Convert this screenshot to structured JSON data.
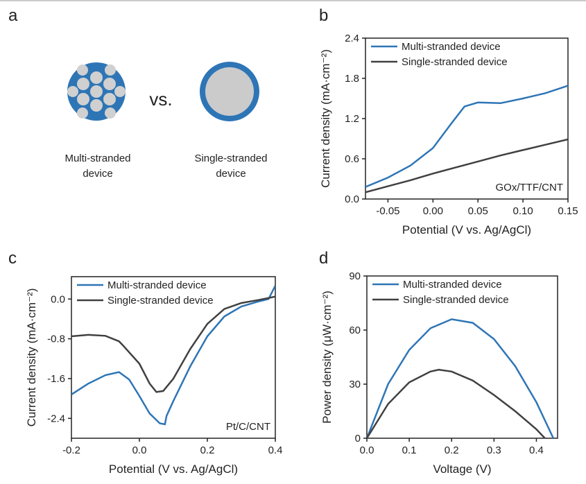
{
  "panel_a": {
    "label": "a",
    "multi_label": [
      "Multi-stranded",
      "device"
    ],
    "vs": "vs.",
    "single_label": [
      "Single-stranded",
      "device"
    ]
  },
  "chart_data": [
    {
      "type": "line",
      "label": "b",
      "xlabel": "Potential (V vs. Ag/AgCl)",
      "ylabel": "Current density (mA·cm⁻²)",
      "annotation": "GOx/TTF/CNT",
      "xlim": [
        -0.075,
        0.15
      ],
      "xticks": [
        -0.05,
        {
          "value": 0,
          "label": "0.00"
        },
        0.05,
        {
          "value": 0.1,
          "label": "0.10"
        },
        0.15
      ],
      "ylim": [
        0,
        2.4
      ],
      "yticks": [
        {
          "value": 0,
          "label": "0.0"
        },
        0.6,
        1.2,
        1.8,
        2.4
      ],
      "legend": "upper left",
      "series": [
        {
          "name": "Multi-stranded device",
          "color": "#2e75b6",
          "x": [
            -0.075,
            -0.05,
            -0.025,
            0,
            0.02,
            0.035,
            0.05,
            0.075,
            0.1,
            0.125,
            0.15
          ],
          "values": [
            0.18,
            0.32,
            0.5,
            0.76,
            1.12,
            1.38,
            1.44,
            1.43,
            1.5,
            1.58,
            1.69
          ]
        },
        {
          "name": "Single-stranded device",
          "color": "#404040",
          "x": [
            -0.075,
            -0.05,
            -0.025,
            0,
            0.025,
            0.05,
            0.075,
            0.1,
            0.125,
            0.15
          ],
          "values": [
            0.1,
            0.19,
            0.28,
            0.38,
            0.47,
            0.56,
            0.65,
            0.73,
            0.81,
            0.89
          ]
        }
      ]
    },
    {
      "type": "line",
      "label": "c",
      "xlabel": "Potential (V vs. Ag/AgCl)",
      "ylabel": "Current density (mA·cm⁻²)",
      "annotation": "Pt/C/CNT",
      "xlim": [
        -0.2,
        0.4
      ],
      "xticks": [
        -0.2,
        {
          "value": 0,
          "label": "0.0"
        },
        0.2,
        0.4
      ],
      "ylim": [
        -2.8,
        0.45
      ],
      "yticks": [
        -2.4,
        -1.6,
        -0.8,
        {
          "value": 0,
          "label": "0.0"
        }
      ],
      "legend": "upper left",
      "series": [
        {
          "name": "Multi-stranded device",
          "color": "#2e75b6",
          "x": [
            -0.2,
            -0.15,
            -0.1,
            -0.06,
            -0.03,
            0,
            0.03,
            0.06,
            0.075,
            0.08,
            0.1,
            0.15,
            0.2,
            0.25,
            0.3,
            0.35,
            0.38,
            0.4
          ],
          "values": [
            -1.92,
            -1.7,
            -1.53,
            -1.47,
            -1.62,
            -1.95,
            -2.3,
            -2.5,
            -2.52,
            -2.35,
            -2.05,
            -1.35,
            -0.75,
            -0.35,
            -0.15,
            -0.05,
            0,
            0.27
          ]
        },
        {
          "name": "Single-stranded device",
          "color": "#404040",
          "x": [
            -0.2,
            -0.15,
            -0.1,
            -0.06,
            -0.05,
            0,
            0.03,
            0.05,
            0.07,
            0.1,
            0.15,
            0.2,
            0.25,
            0.3,
            0.35,
            0.4
          ],
          "values": [
            -0.75,
            -0.72,
            -0.74,
            -0.85,
            -0.92,
            -1.3,
            -1.7,
            -1.87,
            -1.85,
            -1.6,
            -1,
            -0.5,
            -0.2,
            -0.08,
            -0.02,
            0.05
          ]
        }
      ]
    },
    {
      "type": "line",
      "label": "d",
      "xlabel": "Voltage (V)",
      "ylabel": "Power density (μW·cm⁻²)",
      "xlim": [
        0,
        0.45
      ],
      "xticks": [
        {
          "value": 0,
          "label": "0.0"
        },
        0.1,
        0.2,
        0.3,
        0.4
      ],
      "ylim": [
        0,
        90
      ],
      "yticks": [
        0,
        30,
        60,
        90
      ],
      "legend": "upper left",
      "series": [
        {
          "name": "Multi-stranded device",
          "color": "#2e75b6",
          "x": [
            0,
            0.05,
            0.1,
            0.15,
            0.2,
            0.25,
            0.3,
            0.35,
            0.4,
            0.44
          ],
          "values": [
            0,
            30,
            49,
            61,
            66,
            64,
            55,
            40,
            20,
            0
          ]
        },
        {
          "name": "Single-stranded device",
          "color": "#404040",
          "x": [
            0,
            0.05,
            0.1,
            0.15,
            0.17,
            0.2,
            0.25,
            0.3,
            0.35,
            0.4,
            0.42
          ],
          "values": [
            0,
            19,
            31,
            37,
            38,
            37,
            32,
            24,
            15,
            5,
            0
          ]
        }
      ]
    }
  ]
}
